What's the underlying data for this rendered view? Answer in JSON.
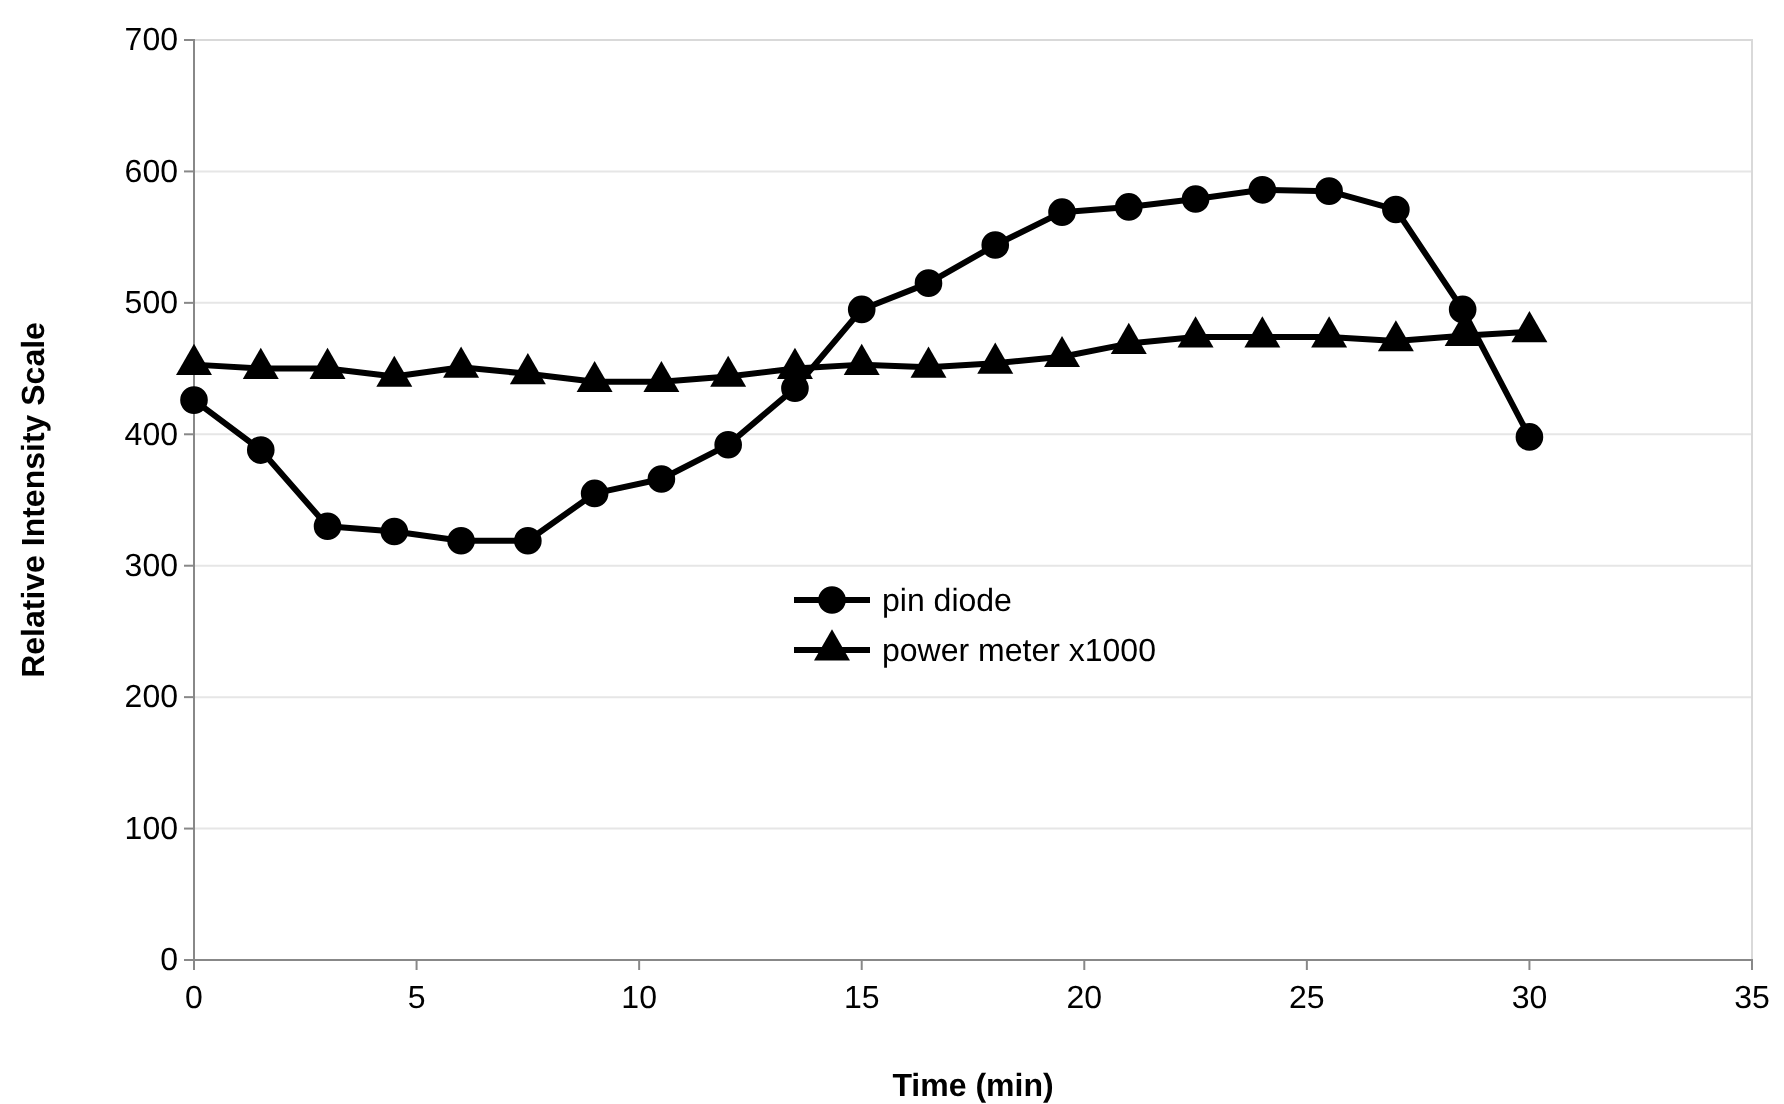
{
  "chart_data": {
    "type": "line",
    "xlabel": "Time (min)",
    "ylabel": "Relative Intensity Scale",
    "x": [
      0,
      1.5,
      3,
      4.5,
      6,
      7.5,
      9,
      10.5,
      12,
      13.5,
      15,
      16.5,
      18,
      19.5,
      21,
      22.5,
      24,
      25.5,
      27,
      28.5,
      30
    ],
    "series": [
      {
        "name": "pin diode",
        "color": "#000000",
        "marker": "circle",
        "values": [
          426,
          388,
          330,
          326,
          319,
          319,
          355,
          366,
          392,
          435,
          495,
          515,
          544,
          569,
          573,
          579,
          586,
          585,
          571,
          495,
          398
        ]
      },
      {
        "name": "power meter x1000",
        "color": "#000000",
        "marker": "triangle",
        "values": [
          453,
          450,
          450,
          444,
          451,
          446,
          440,
          440,
          444,
          450,
          453,
          451,
          454,
          459,
          469,
          474,
          474,
          474,
          471,
          475,
          478
        ]
      }
    ],
    "xlim": [
      0,
      35
    ],
    "xticks": [
      0,
      5,
      10,
      15,
      20,
      25,
      30,
      35
    ],
    "ylim": [
      0,
      700
    ],
    "yticks": [
      0,
      100,
      200,
      300,
      400,
      500,
      600,
      700
    ],
    "grid": "y",
    "legend": "center",
    "line_style": "solid"
  }
}
